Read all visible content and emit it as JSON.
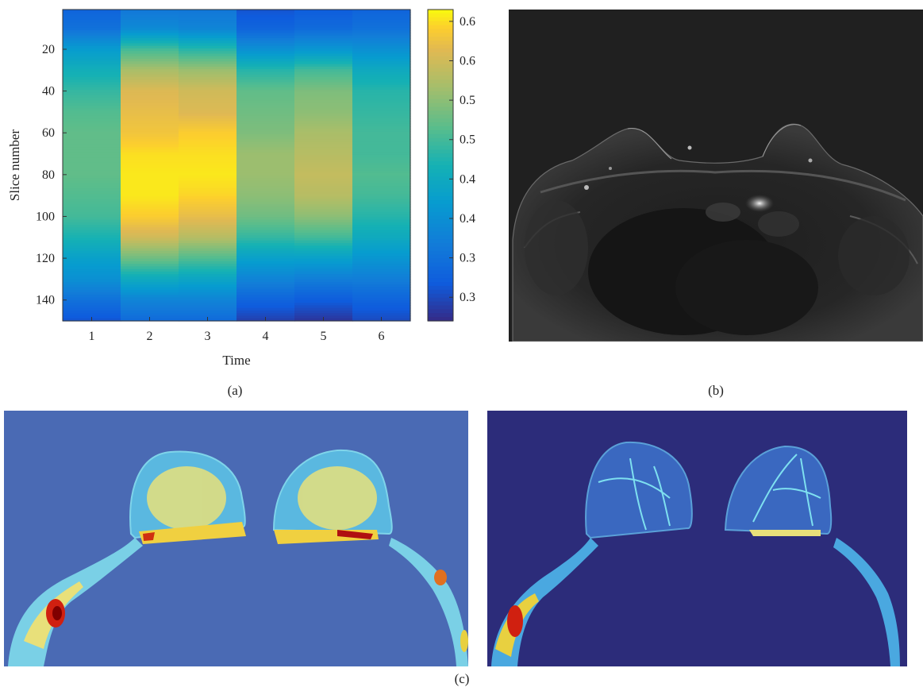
{
  "chart_data": {
    "type": "heatmap",
    "title": "",
    "xlabel": "Time",
    "ylabel": "Slice number",
    "x_ticks": [
      "1",
      "2",
      "3",
      "4",
      "5",
      "6"
    ],
    "y_ticks": [
      "20",
      "40",
      "60",
      "80",
      "100",
      "120",
      "140"
    ],
    "x_values": [
      1,
      2,
      3,
      4,
      5,
      6
    ],
    "y_values": [
      1,
      10,
      20,
      30,
      40,
      50,
      60,
      70,
      80,
      90,
      100,
      110,
      120,
      130,
      140,
      150
    ],
    "ylim": [
      1,
      150
    ],
    "y_reversed": true,
    "colorbar_ticks": [
      "0.65",
      "0.6",
      "0.55",
      "0.5",
      "0.45",
      "0.4",
      "0.35",
      "0.3"
    ],
    "colorbar_range": [
      0.27,
      0.665
    ],
    "colormap": "parula",
    "values": [
      [
        0.33,
        0.36,
        0.36,
        0.31,
        0.32,
        0.33
      ],
      [
        0.35,
        0.39,
        0.38,
        0.33,
        0.34,
        0.35
      ],
      [
        0.42,
        0.5,
        0.48,
        0.4,
        0.41,
        0.4
      ],
      [
        0.46,
        0.57,
        0.56,
        0.48,
        0.5,
        0.45
      ],
      [
        0.49,
        0.61,
        0.6,
        0.52,
        0.54,
        0.48
      ],
      [
        0.51,
        0.62,
        0.61,
        0.53,
        0.55,
        0.49
      ],
      [
        0.52,
        0.63,
        0.64,
        0.54,
        0.57,
        0.5
      ],
      [
        0.52,
        0.65,
        0.65,
        0.56,
        0.58,
        0.5
      ],
      [
        0.52,
        0.655,
        0.655,
        0.56,
        0.59,
        0.51
      ],
      [
        0.51,
        0.655,
        0.645,
        0.55,
        0.58,
        0.5
      ],
      [
        0.5,
        0.64,
        0.62,
        0.53,
        0.55,
        0.48
      ],
      [
        0.47,
        0.6,
        0.58,
        0.49,
        0.5,
        0.45
      ],
      [
        0.43,
        0.53,
        0.51,
        0.43,
        0.43,
        0.41
      ],
      [
        0.4,
        0.45,
        0.44,
        0.38,
        0.37,
        0.37
      ],
      [
        0.35,
        0.38,
        0.38,
        0.33,
        0.32,
        0.33
      ],
      [
        0.31,
        0.34,
        0.34,
        0.29,
        0.28,
        0.3
      ]
    ]
  },
  "panels": {
    "a": "(a)",
    "b": "(b)",
    "c": "(c)"
  },
  "colors": {
    "map_left_background": "#4a6ab4",
    "map_right_background": "#2c2c7a",
    "mri_background": "#202020"
  }
}
